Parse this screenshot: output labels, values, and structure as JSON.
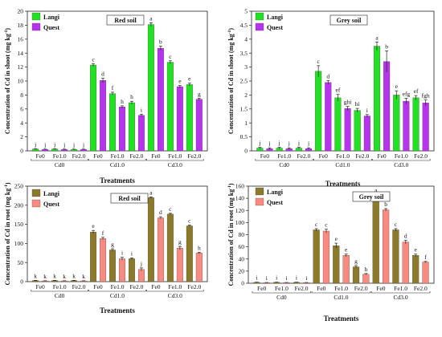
{
  "chart_data": [
    {
      "type": "bar",
      "panel": "shoot-red-soil",
      "title": "Red soil",
      "ylabel": "Concentration of Cd in shoot (mg kg",
      "ylabel_sup": "-1",
      "ylabel_tail": ")",
      "xlabel": "Treatments",
      "ylim": [
        0,
        20
      ],
      "yticks": [
        "0",
        "2",
        "4",
        "6",
        "8",
        "10",
        "12",
        "14",
        "16",
        "18",
        "20"
      ],
      "categories": [
        "Fe0",
        "Fe1.0",
        "Fe2.0",
        "Fe0",
        "Fe1.0",
        "Fe2.0",
        "Fe0",
        "Fe1.0",
        "Fe2.0"
      ],
      "groups": [
        "Cd0",
        "Cd1.0",
        "Cd3.0"
      ],
      "legend_position": "top-left",
      "colors": [
        "#22e022",
        "#b733ee"
      ],
      "series": [
        {
          "name": "Langi",
          "values": [
            0.25,
            0.25,
            0.2,
            12.3,
            8.2,
            6.9,
            18.1,
            12.7,
            9.5
          ],
          "errors": [
            0.05,
            0.05,
            0.05,
            0.2,
            0.2,
            0.2,
            0.25,
            0.2,
            0.2
          ],
          "letters": [
            "j",
            "j",
            "j",
            "c",
            "f",
            "h",
            "a",
            "c",
            "e"
          ]
        },
        {
          "name": "Quest",
          "values": [
            0.2,
            0.2,
            0.2,
            10.1,
            6.3,
            5.1,
            14.7,
            9.2,
            7.4
          ],
          "errors": [
            0.05,
            0.05,
            0.05,
            0.3,
            0.15,
            0.15,
            0.3,
            0.15,
            0.15
          ],
          "letters": [
            "j",
            "j",
            "j",
            "d",
            "h",
            "i",
            "b",
            "e",
            "g"
          ]
        }
      ]
    },
    {
      "type": "bar",
      "panel": "shoot-grey-soil",
      "title": "Grey soil",
      "ylabel": "Concentration of Cd in shoot (mg kg",
      "ylabel_sup": "-1",
      "ylabel_tail": ")",
      "xlabel": "Treatments",
      "ylim": [
        0,
        5
      ],
      "yticks": [
        "0",
        "0.5",
        "1",
        "1.5",
        "2",
        "2.5",
        "3",
        "3.5",
        "4",
        "4.5",
        "5"
      ],
      "categories": [
        "Fe0",
        "Fe1.0",
        "Fe2.0",
        "Fe0",
        "Fe1.0",
        "Fe2.0",
        "Fe0",
        "Fe1.0",
        "Fe2.0"
      ],
      "groups": [
        "Cd0",
        "Cd1.0",
        "Cd3.0"
      ],
      "legend_position": "top-left",
      "colors": [
        "#22e022",
        "#b733ee"
      ],
      "series": [
        {
          "name": "Langi",
          "values": [
            0.1,
            0.1,
            0.1,
            2.85,
            1.9,
            1.45,
            3.75,
            2.0,
            1.9
          ],
          "errors": [
            0.03,
            0.03,
            0.03,
            0.2,
            0.12,
            0.07,
            0.15,
            0.15,
            0.08
          ],
          "letters": [
            "j",
            "j",
            "j",
            "c",
            "ef",
            "hi",
            "a",
            "e",
            "ef"
          ]
        },
        {
          "name": "Quest",
          "values": [
            0.08,
            0.08,
            0.08,
            2.45,
            1.52,
            1.25,
            3.2,
            1.78,
            1.72
          ],
          "errors": [
            0.03,
            0.03,
            0.03,
            0.07,
            0.07,
            0.05,
            0.38,
            0.1,
            0.1
          ],
          "letters": [
            "j",
            "j",
            "j",
            "d",
            "ghi",
            "i",
            "b",
            "efg",
            "fgh"
          ]
        }
      ]
    },
    {
      "type": "bar",
      "panel": "root-red-soil",
      "title": "Red soil",
      "ylabel": "Concentration of Cd in root (mg kg",
      "ylabel_sup": "-1",
      "ylabel_tail": ")",
      "xlabel": "Treatments",
      "ylim": [
        0,
        250
      ],
      "yticks": [
        "0",
        "50",
        "100",
        "150",
        "200",
        "250"
      ],
      "categories": [
        "Fe0",
        "Fe1.0",
        "Fe2.0",
        "Fe0",
        "Fe1.0",
        "Fe2.0",
        "Fe0",
        "Fe1.0",
        "Fe2.0"
      ],
      "groups": [
        "Cd0",
        "Cd1.0",
        "Cd3.0"
      ],
      "legend_position": "top-left",
      "colors": [
        "#8a7a2a",
        "#f88a80"
      ],
      "series": [
        {
          "name": "Langi",
          "values": [
            3,
            3,
            3,
            130,
            83,
            60,
            220,
            177,
            146
          ],
          "errors": [
            0.5,
            0.5,
            0.5,
            4,
            3,
            2,
            2,
            2,
            2
          ],
          "letters": [
            "k",
            "k",
            "k",
            "e",
            "g",
            "i",
            "a",
            "c",
            "c"
          ]
        },
        {
          "name": "Quest",
          "values": [
            2,
            2,
            2,
            113,
            60,
            32,
            167,
            88,
            75
          ],
          "errors": [
            0.5,
            0.5,
            0.5,
            3,
            4,
            4,
            3,
            4,
            2
          ],
          "letters": [
            "k",
            "k",
            "k",
            "f",
            "i",
            "j",
            "d",
            "g",
            "h"
          ]
        }
      ]
    },
    {
      "type": "bar",
      "panel": "root-grey-soil",
      "title": "Grey soil",
      "ylabel": "Concentration of Cd in root (mg kg",
      "ylabel_sup": "-1",
      "ylabel_tail": ")",
      "xlabel": "Treatments",
      "ylim": [
        0,
        160
      ],
      "yticks": [
        "0",
        "20",
        "40",
        "60",
        "80",
        "100",
        "120",
        "140",
        "160"
      ],
      "categories": [
        "Fe0",
        "Fe1.0",
        "Fe2.0",
        "Fe0",
        "Fe1.0",
        "Fe2.0",
        "Fe0",
        "Fe1.0",
        "Fe2.0"
      ],
      "groups": [
        "Cd0",
        "Cd1.0",
        "Cd3.0"
      ],
      "legend_position": "top-left",
      "colors": [
        "#8a7a2a",
        "#f88a80"
      ],
      "series": [
        {
          "name": "Langi",
          "values": [
            1.5,
            1.5,
            1.5,
            88,
            62,
            27,
            143,
            88,
            46
          ],
          "errors": [
            0.3,
            0.3,
            0.3,
            2,
            4,
            2,
            3,
            2,
            2
          ],
          "letters": [
            "i",
            "i",
            "i",
            "c",
            "e",
            "g",
            "a",
            "c",
            "e"
          ]
        },
        {
          "name": "Quest",
          "values": [
            1,
            1,
            1,
            86,
            46,
            15,
            121,
            68,
            35
          ],
          "errors": [
            0.3,
            0.3,
            0.3,
            3,
            2,
            1,
            2,
            3,
            1
          ],
          "letters": [
            "i",
            "i",
            "i",
            "c",
            "e",
            "h",
            "b",
            "d",
            "f"
          ]
        }
      ]
    }
  ]
}
